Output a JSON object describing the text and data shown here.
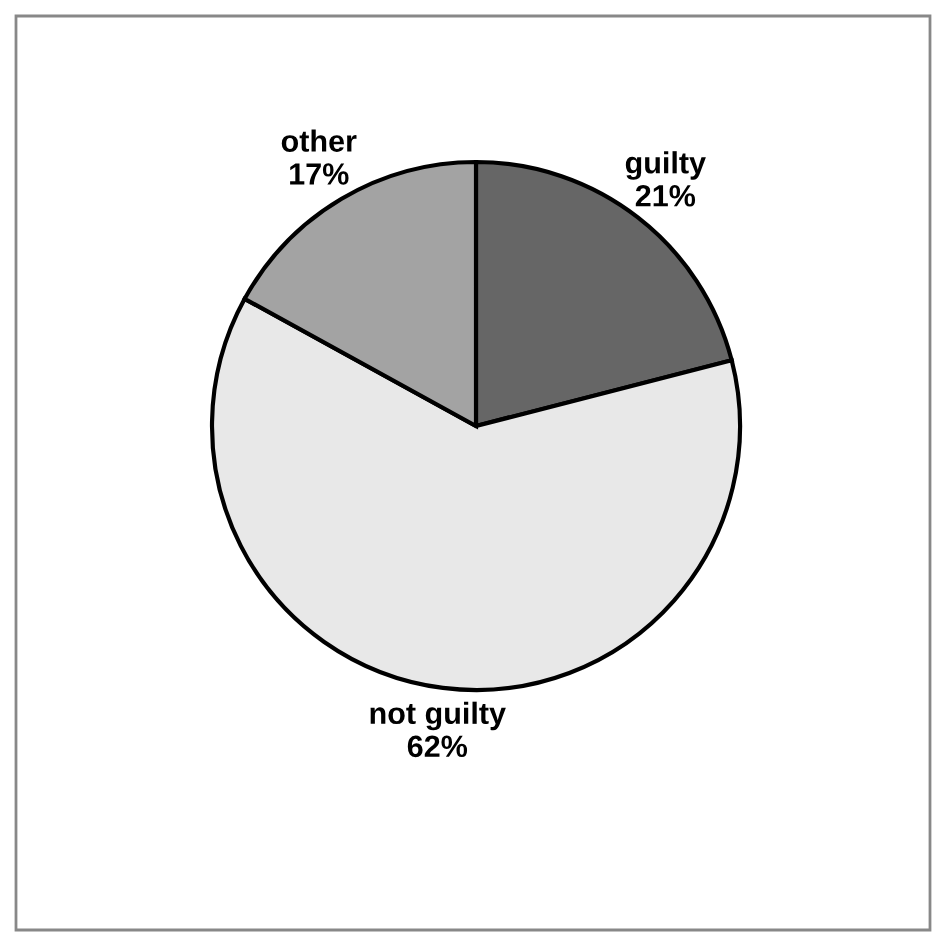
{
  "chart_data": {
    "type": "pie",
    "categories": [
      "guilty",
      "not guilty",
      "other"
    ],
    "values": [
      21,
      62,
      17
    ],
    "value_labels": [
      "21%",
      "62%",
      "17%"
    ],
    "colors": [
      "#666666",
      "#e8e8e8",
      "#a3a3a3"
    ]
  }
}
